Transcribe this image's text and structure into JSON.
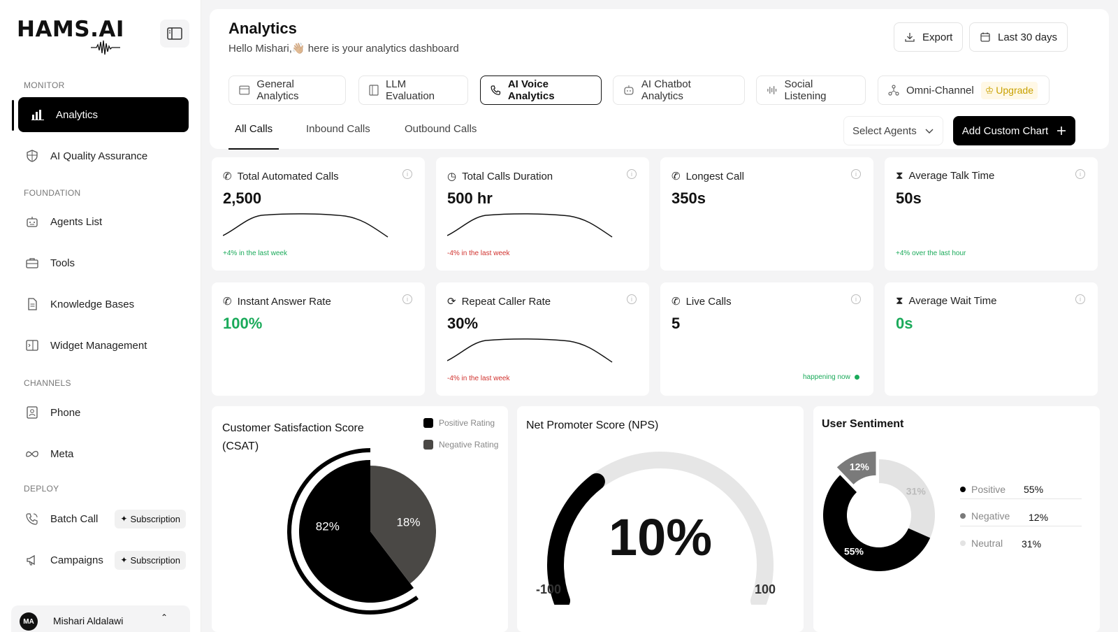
{
  "brand": {
    "name": "HAMS.AI"
  },
  "sidebar": {
    "sections": {
      "monitor": "MONITOR",
      "foundation": "FOUNDATION",
      "channels": "CHANNELS",
      "deploy": "DEPLOY"
    },
    "items": {
      "analytics": "Analytics",
      "ai_quality": "AI Quality Assurance",
      "agents_list": "Agents List",
      "tools": "Tools",
      "knowledge_bases": "Knowledge Bases",
      "widget_management": "Widget Management",
      "phone": "Phone",
      "meta": "Meta",
      "batch_call": "Batch Call",
      "campaigns": "Campaigns"
    },
    "subscription_label": "Subscription",
    "user": {
      "initials": "MA",
      "name": "Mishari Aldalawi"
    }
  },
  "header": {
    "title": "Analytics",
    "subtitle": "Hello Mishari,👋🏼 here is your analytics dashboard",
    "export_label": "Export",
    "date_range_label": "Last 30 days"
  },
  "tabs": {
    "general": "General Analytics",
    "llm": "LLM  Evaluation",
    "voice": "AI Voice Analytics",
    "chatbot": "AI Chatbot Analytics",
    "social": "Social Listening",
    "omni": "Omni-Channel",
    "upgrade": "Upgrade"
  },
  "subtabs": {
    "all": "All Calls",
    "inbound": "Inbound Calls",
    "outbound": "Outbound Calls"
  },
  "controls": {
    "select_agents": "Select Agents",
    "add_custom_chart": "Add Custom Chart"
  },
  "metrics": {
    "total_automated_calls": {
      "title": "Total Automated Calls",
      "value": "2,500",
      "note": "+4% in the last week"
    },
    "total_calls_duration": {
      "title": "Total Calls Duration",
      "value": "500 hr",
      "note": "-4% in the last week"
    },
    "longest_call": {
      "title": "Longest Call",
      "value": "350s"
    },
    "average_talk_time": {
      "title": "Average Talk Time",
      "value": "50s",
      "note": "+4% over the last hour"
    },
    "instant_answer_rate": {
      "title": "Instant Answer Rate",
      "value": "100%"
    },
    "repeat_caller_rate": {
      "title": "Repeat Caller Rate",
      "value": "30%",
      "note": "-4% in the last week"
    },
    "live_calls": {
      "title": "Live Calls",
      "value": "5",
      "note": "happening now"
    },
    "average_wait_time": {
      "title": "Average Wait Time",
      "value": "0s"
    }
  },
  "info_glyph": "i",
  "chart_data": [
    {
      "type": "pie",
      "title": "Customer Satisfaction Score (CSAT)",
      "title_line1": "Customer Satisfaction Score",
      "title_line2": "(CSAT)",
      "categories": [
        "Positive Rating",
        "Negative Rating"
      ],
      "values": [
        82,
        18
      ],
      "labels": [
        "82%",
        "18%"
      ],
      "colors": [
        "#000000",
        "#4a4845"
      ],
      "legend": "top-right"
    },
    {
      "type": "gauge",
      "title": "Net Promoter Score (NPS)",
      "value": 10,
      "value_label": "10%",
      "min": -100,
      "max": 100,
      "min_label": "-100",
      "max_label": "100"
    },
    {
      "type": "pie",
      "title": "User Sentiment",
      "categories": [
        "Positive",
        "Negative",
        "Neutral"
      ],
      "values": [
        55,
        12,
        31
      ],
      "labels": [
        "55%",
        "12%",
        "31%"
      ],
      "colors": [
        "#000000",
        "#7a7a7a",
        "#e3e3e3"
      ],
      "legend": "right"
    }
  ]
}
